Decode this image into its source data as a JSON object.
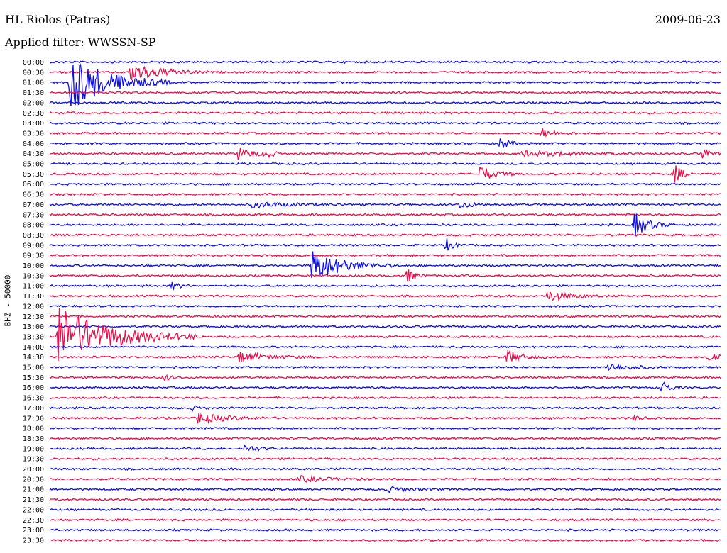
{
  "header": {
    "station": "HL Riolos (Patras)",
    "date": "2009-06-23",
    "filter": "Applied filter: WWSSN-SP"
  },
  "chart_data": {
    "type": "line",
    "title": "HL Riolos (Patras)",
    "ylabel": "BHZ - 50000",
    "colors": {
      "odd": "#1010e0",
      "even": "#e8104c"
    },
    "lines": [
      "00:00",
      "00:30",
      "01:00",
      "01:30",
      "02:00",
      "02:30",
      "03:00",
      "03:30",
      "04:00",
      "04:30",
      "05:00",
      "05:30",
      "06:00",
      "06:30",
      "07:00",
      "07:30",
      "08:00",
      "08:30",
      "09:00",
      "09:30",
      "10:00",
      "10:30",
      "11:00",
      "11:30",
      "12:00",
      "12:30",
      "13:00",
      "13:30",
      "14:00",
      "14:30",
      "15:00",
      "15:30",
      "16:00",
      "16:30",
      "17:00",
      "17:30",
      "18:00",
      "18:30",
      "19:00",
      "19:30",
      "20:00",
      "20:30",
      "21:00",
      "21:30",
      "22:00",
      "22:30",
      "23:00",
      "23:30"
    ],
    "x_range_minutes": [
      0,
      30
    ],
    "events": [
      {
        "line": 2,
        "t": 0.03,
        "amp": 42,
        "dur": 0.05
      },
      {
        "line": 1,
        "t": 0.12,
        "amp": 14,
        "dur": 0.04
      },
      {
        "line": 2,
        "t": 0.87,
        "amp": 4,
        "dur": 0.01
      },
      {
        "line": 7,
        "t": 0.73,
        "amp": 6,
        "dur": 0.02
      },
      {
        "line": 8,
        "t": 0.67,
        "amp": 11,
        "dur": 0.01
      },
      {
        "line": 9,
        "t": 0.28,
        "amp": 9,
        "dur": 0.02
      },
      {
        "line": 9,
        "t": 0.32,
        "amp": 7,
        "dur": 0.01
      },
      {
        "line": 9,
        "t": 0.7,
        "amp": 4,
        "dur": 0.07
      },
      {
        "line": 9,
        "t": 0.97,
        "amp": 10,
        "dur": 0.01
      },
      {
        "line": 11,
        "t": 0.64,
        "amp": 12,
        "dur": 0.02
      },
      {
        "line": 11,
        "t": 0.93,
        "amp": 16,
        "dur": 0.01
      },
      {
        "line": 14,
        "t": 0.3,
        "amp": 4,
        "dur": 0.05
      },
      {
        "line": 14,
        "t": 0.61,
        "amp": 5,
        "dur": 0.02
      },
      {
        "line": 16,
        "t": 0.87,
        "amp": 18,
        "dur": 0.02
      },
      {
        "line": 18,
        "t": 0.59,
        "amp": 10,
        "dur": 0.01
      },
      {
        "line": 20,
        "t": 0.39,
        "amp": 24,
        "dur": 0.04
      },
      {
        "line": 21,
        "t": 0.53,
        "amp": 12,
        "dur": 0.01
      },
      {
        "line": 22,
        "t": 0.18,
        "amp": 7,
        "dur": 0.01
      },
      {
        "line": 23,
        "t": 0.74,
        "amp": 8,
        "dur": 0.03
      },
      {
        "line": 27,
        "t": 0.01,
        "amp": 44,
        "dur": 0.07
      },
      {
        "line": 29,
        "t": 0.28,
        "amp": 7,
        "dur": 0.04
      },
      {
        "line": 29,
        "t": 0.68,
        "amp": 10,
        "dur": 0.02
      },
      {
        "line": 29,
        "t": 0.98,
        "amp": 8,
        "dur": 0.02
      },
      {
        "line": 30,
        "t": 0.83,
        "amp": 6,
        "dur": 0.03
      },
      {
        "line": 31,
        "t": 0.17,
        "amp": 5,
        "dur": 0.01
      },
      {
        "line": 32,
        "t": 0.91,
        "amp": 12,
        "dur": 0.01
      },
      {
        "line": 34,
        "t": 0.21,
        "amp": 4,
        "dur": 0.01
      },
      {
        "line": 35,
        "t": 0.22,
        "amp": 7,
        "dur": 0.04
      },
      {
        "line": 35,
        "t": 0.87,
        "amp": 4,
        "dur": 0.01
      },
      {
        "line": 38,
        "t": 0.29,
        "amp": 5,
        "dur": 0.02
      },
      {
        "line": 41,
        "t": 0.37,
        "amp": 4,
        "dur": 0.04
      },
      {
        "line": 42,
        "t": 0.5,
        "amp": 4,
        "dur": 0.03
      }
    ]
  }
}
